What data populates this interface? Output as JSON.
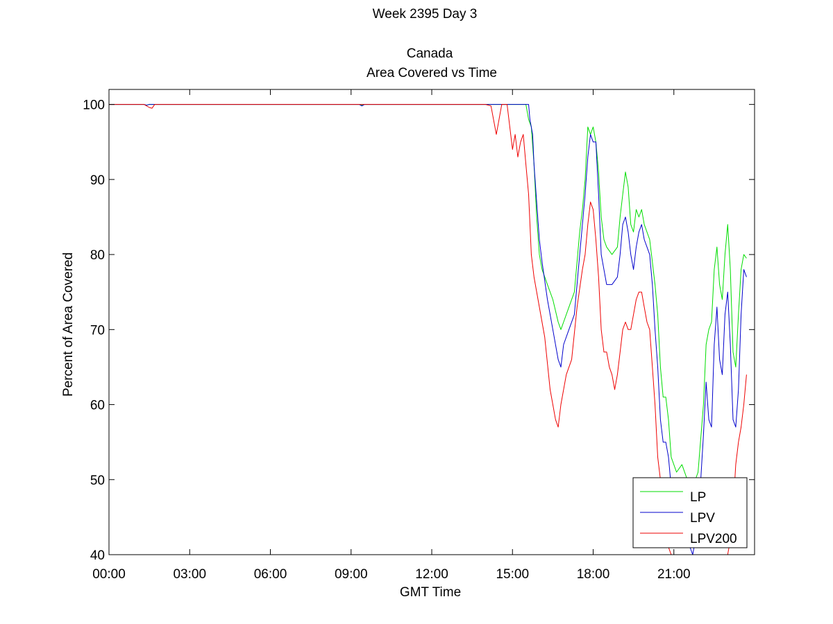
{
  "chart_data": {
    "type": "line",
    "title_lines": [
      "Week 2395 Day 3",
      "Canada",
      "Area Covered vs Time"
    ],
    "xlabel": "GMT Time",
    "ylabel": "Percent of Area Covered",
    "xlim_hours": [
      0,
      24
    ],
    "ylim": [
      40,
      102
    ],
    "x_tick_hours": [
      0,
      3,
      6,
      9,
      12,
      15,
      18,
      21
    ],
    "x_tick_labels": [
      "00:00",
      "03:00",
      "06:00",
      "09:00",
      "12:00",
      "15:00",
      "18:00",
      "21:00"
    ],
    "y_ticks": [
      40,
      50,
      60,
      70,
      80,
      90,
      100
    ],
    "y_tick_labels": [
      "40",
      "50",
      "60",
      "70",
      "80",
      "90",
      "100"
    ],
    "grid": false,
    "legend_position": "bottom-right",
    "series": [
      {
        "name": "LP",
        "color": "#00dd00",
        "points": [
          [
            0,
            100
          ],
          [
            1.3,
            100
          ],
          [
            1.4,
            99.9
          ],
          [
            1.5,
            100
          ],
          [
            9.3,
            100
          ],
          [
            9.4,
            99.9
          ],
          [
            9.5,
            100
          ],
          [
            14.4,
            100
          ],
          [
            15.5,
            100
          ],
          [
            15.6,
            98
          ],
          [
            15.7,
            97
          ],
          [
            15.8,
            92
          ],
          [
            15.9,
            85
          ],
          [
            16.0,
            80
          ],
          [
            16.1,
            78
          ],
          [
            16.3,
            76
          ],
          [
            16.5,
            74
          ],
          [
            16.7,
            71
          ],
          [
            16.8,
            70
          ],
          [
            16.9,
            71
          ],
          [
            17.1,
            73
          ],
          [
            17.3,
            75
          ],
          [
            17.5,
            83
          ],
          [
            17.6,
            86
          ],
          [
            17.7,
            90
          ],
          [
            17.8,
            97
          ],
          [
            17.9,
            96
          ],
          [
            18.0,
            97
          ],
          [
            18.1,
            95
          ],
          [
            18.2,
            91
          ],
          [
            18.3,
            85
          ],
          [
            18.4,
            82
          ],
          [
            18.5,
            81
          ],
          [
            18.7,
            80
          ],
          [
            18.9,
            81
          ],
          [
            19.0,
            85
          ],
          [
            19.1,
            88
          ],
          [
            19.2,
            91
          ],
          [
            19.3,
            89
          ],
          [
            19.4,
            84
          ],
          [
            19.5,
            83
          ],
          [
            19.6,
            86
          ],
          [
            19.7,
            85
          ],
          [
            19.8,
            86
          ],
          [
            19.9,
            84
          ],
          [
            20.1,
            82
          ],
          [
            20.2,
            79
          ],
          [
            20.3,
            76
          ],
          [
            20.4,
            72
          ],
          [
            20.5,
            65
          ],
          [
            20.6,
            61
          ],
          [
            20.7,
            61
          ],
          [
            20.8,
            58
          ],
          [
            20.9,
            53
          ],
          [
            21.1,
            51
          ],
          [
            21.3,
            52
          ],
          [
            21.5,
            50
          ],
          [
            21.7,
            49
          ],
          [
            21.9,
            51
          ],
          [
            22.1,
            60
          ],
          [
            22.2,
            68
          ],
          [
            22.3,
            70
          ],
          [
            22.4,
            71
          ],
          [
            22.5,
            78
          ],
          [
            22.6,
            81
          ],
          [
            22.7,
            76
          ],
          [
            22.8,
            74
          ],
          [
            22.9,
            80
          ],
          [
            23.0,
            84
          ],
          [
            23.1,
            78
          ],
          [
            23.2,
            67
          ],
          [
            23.3,
            65
          ],
          [
            23.4,
            72
          ],
          [
            23.5,
            78
          ],
          [
            23.6,
            80
          ],
          [
            23.7,
            79.5
          ]
        ]
      },
      {
        "name": "LPV",
        "color": "#0000cc",
        "points": [
          [
            0,
            100
          ],
          [
            1.3,
            100
          ],
          [
            1.4,
            99.9
          ],
          [
            1.5,
            100
          ],
          [
            9.3,
            100
          ],
          [
            9.4,
            99.8
          ],
          [
            9.5,
            100
          ],
          [
            14.4,
            100
          ],
          [
            15.6,
            100
          ],
          [
            15.65,
            98
          ],
          [
            15.75,
            96
          ],
          [
            15.8,
            92
          ],
          [
            15.9,
            87
          ],
          [
            16.0,
            82
          ],
          [
            16.1,
            79
          ],
          [
            16.3,
            74
          ],
          [
            16.5,
            70
          ],
          [
            16.7,
            66
          ],
          [
            16.8,
            65
          ],
          [
            16.9,
            68
          ],
          [
            17.1,
            70
          ],
          [
            17.3,
            72
          ],
          [
            17.5,
            80
          ],
          [
            17.6,
            84
          ],
          [
            17.7,
            88
          ],
          [
            17.8,
            93
          ],
          [
            17.9,
            96
          ],
          [
            18.0,
            95
          ],
          [
            18.1,
            95
          ],
          [
            18.2,
            88
          ],
          [
            18.3,
            80
          ],
          [
            18.4,
            78
          ],
          [
            18.5,
            76
          ],
          [
            18.7,
            76
          ],
          [
            18.9,
            77
          ],
          [
            19.0,
            80
          ],
          [
            19.1,
            84
          ],
          [
            19.2,
            85
          ],
          [
            19.3,
            83
          ],
          [
            19.4,
            80
          ],
          [
            19.5,
            78
          ],
          [
            19.6,
            81
          ],
          [
            19.7,
            83
          ],
          [
            19.8,
            84
          ],
          [
            19.9,
            82
          ],
          [
            20.1,
            80
          ],
          [
            20.2,
            76
          ],
          [
            20.3,
            70
          ],
          [
            20.4,
            65
          ],
          [
            20.5,
            58
          ],
          [
            20.6,
            55
          ],
          [
            20.7,
            55
          ],
          [
            20.8,
            53
          ],
          [
            20.9,
            49
          ],
          [
            21.1,
            45
          ],
          [
            21.3,
            45
          ],
          [
            21.5,
            42
          ],
          [
            21.7,
            40
          ],
          [
            21.9,
            44
          ],
          [
            22.1,
            56
          ],
          [
            22.2,
            63
          ],
          [
            22.3,
            58
          ],
          [
            22.4,
            57
          ],
          [
            22.5,
            68
          ],
          [
            22.6,
            73
          ],
          [
            22.7,
            66
          ],
          [
            22.8,
            64
          ],
          [
            22.9,
            72
          ],
          [
            23.0,
            75
          ],
          [
            23.1,
            68
          ],
          [
            23.2,
            58
          ],
          [
            23.3,
            57
          ],
          [
            23.4,
            62
          ],
          [
            23.5,
            72
          ],
          [
            23.6,
            78
          ],
          [
            23.7,
            77
          ]
        ]
      },
      {
        "name": "LPV200",
        "color": "#ee0000",
        "points": [
          [
            0,
            100
          ],
          [
            1.3,
            100
          ],
          [
            1.4,
            99.8
          ],
          [
            1.5,
            99.6
          ],
          [
            1.6,
            99.5
          ],
          [
            1.7,
            100
          ],
          [
            9.3,
            100
          ],
          [
            14.0,
            100
          ],
          [
            14.2,
            99.8
          ],
          [
            14.4,
            96
          ],
          [
            14.5,
            98
          ],
          [
            14.6,
            100
          ],
          [
            14.8,
            100
          ],
          [
            14.9,
            97
          ],
          [
            15.0,
            94
          ],
          [
            15.1,
            96
          ],
          [
            15.2,
            93
          ],
          [
            15.3,
            95
          ],
          [
            15.4,
            96
          ],
          [
            15.5,
            92
          ],
          [
            15.6,
            88
          ],
          [
            15.7,
            80
          ],
          [
            15.8,
            77
          ],
          [
            16.0,
            73
          ],
          [
            16.2,
            69
          ],
          [
            16.4,
            62
          ],
          [
            16.5,
            60
          ],
          [
            16.6,
            58
          ],
          [
            16.7,
            57
          ],
          [
            16.8,
            60
          ],
          [
            17.0,
            64
          ],
          [
            17.2,
            66
          ],
          [
            17.4,
            73
          ],
          [
            17.6,
            78
          ],
          [
            17.7,
            80
          ],
          [
            17.8,
            84
          ],
          [
            17.9,
            87
          ],
          [
            18.0,
            86
          ],
          [
            18.1,
            82
          ],
          [
            18.2,
            77
          ],
          [
            18.3,
            70
          ],
          [
            18.4,
            67
          ],
          [
            18.5,
            67
          ],
          [
            18.6,
            65
          ],
          [
            18.7,
            64
          ],
          [
            18.8,
            62
          ],
          [
            18.9,
            64
          ],
          [
            19.0,
            67
          ],
          [
            19.1,
            70
          ],
          [
            19.2,
            71
          ],
          [
            19.3,
            70
          ],
          [
            19.4,
            70
          ],
          [
            19.5,
            72
          ],
          [
            19.6,
            74
          ],
          [
            19.7,
            75
          ],
          [
            19.8,
            75
          ],
          [
            19.9,
            73
          ],
          [
            20.0,
            71
          ],
          [
            20.1,
            70
          ],
          [
            20.2,
            65
          ],
          [
            20.3,
            60
          ],
          [
            20.4,
            53
          ],
          [
            20.5,
            50
          ],
          [
            20.6,
            45
          ],
          [
            20.7,
            43
          ],
          [
            20.8,
            41
          ],
          [
            20.9,
            40
          ],
          [
            23.0,
            40
          ],
          [
            23.1,
            42
          ],
          [
            23.2,
            46
          ],
          [
            23.3,
            52
          ],
          [
            23.4,
            55
          ],
          [
            23.5,
            57
          ],
          [
            23.6,
            60
          ],
          [
            23.7,
            64
          ]
        ]
      }
    ]
  }
}
